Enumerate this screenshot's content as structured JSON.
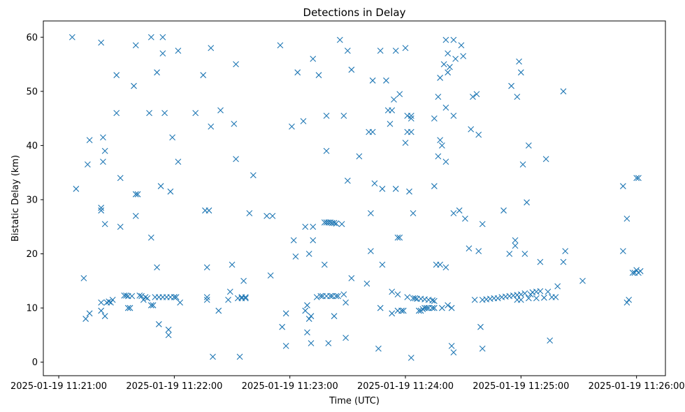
{
  "chart_data": {
    "type": "scatter",
    "title": "Detections in Delay",
    "xlabel": "Time (UTC)",
    "ylabel": "Bistatic Delay (km)",
    "marker": "x",
    "color": "#1f77b4",
    "grid": false,
    "xlim": [
      "2025-01-19 11:20:52",
      "2025-01-19 11:26:15"
    ],
    "ylim": [
      -2.5,
      63
    ],
    "xticks": [
      "2025-01-19 11:21:00",
      "2025-01-19 11:22:00",
      "2025-01-19 11:23:00",
      "2025-01-19 11:24:00",
      "2025-01-19 11:25:00",
      "2025-01-19 11:26:00"
    ],
    "yticks": [
      0,
      10,
      20,
      30,
      40,
      50,
      60
    ],
    "points": [
      [
        "11:21:07",
        60.0
      ],
      [
        "11:21:09",
        32.0
      ],
      [
        "11:21:13",
        15.5
      ],
      [
        "11:21:14",
        8.0
      ],
      [
        "11:21:15",
        36.5
      ],
      [
        "11:21:16",
        41.0
      ],
      [
        "11:21:16",
        9.0
      ],
      [
        "11:21:22",
        59.0
      ],
      [
        "11:21:22",
        28.5
      ],
      [
        "11:21:22",
        28.0
      ],
      [
        "11:21:22",
        11.0
      ],
      [
        "11:21:22",
        9.5
      ],
      [
        "11:21:23",
        41.5
      ],
      [
        "11:21:23",
        37.0
      ],
      [
        "11:21:24",
        25.5
      ],
      [
        "11:21:24",
        39.0
      ],
      [
        "11:21:24",
        8.5
      ],
      [
        "11:21:25",
        11.0
      ],
      [
        "11:21:27",
        11.0
      ],
      [
        "11:21:30",
        53.0
      ],
      [
        "11:21:30",
        46.0
      ],
      [
        "11:21:32",
        34.0
      ],
      [
        "11:21:32",
        25.0
      ],
      [
        "11:21:34",
        12.3
      ],
      [
        "11:21:35",
        12.3
      ],
      [
        "11:21:36",
        12.2
      ],
      [
        "11:21:36",
        10.0
      ],
      [
        "11:21:37",
        10.0
      ],
      [
        "11:21:38",
        12.2
      ],
      [
        "11:21:39",
        51.0
      ],
      [
        "11:21:40",
        58.5
      ],
      [
        "11:21:40",
        31.0
      ],
      [
        "11:21:40",
        27.0
      ],
      [
        "11:21:41",
        31.0
      ],
      [
        "11:21:42",
        12.3
      ],
      [
        "11:21:43",
        12.2
      ],
      [
        "11:21:44",
        11.5
      ],
      [
        "11:21:45",
        12.0
      ],
      [
        "11:21:47",
        46.0
      ],
      [
        "11:21:48",
        23.0
      ],
      [
        "11:21:48",
        10.5
      ],
      [
        "11:21:48",
        60.0
      ],
      [
        "11:21:49",
        10.5
      ],
      [
        "11:21:51",
        17.5
      ],
      [
        "11:21:51",
        53.5
      ],
      [
        "11:21:52",
        7.0
      ],
      [
        "11:21:53",
        32.5
      ],
      [
        "11:21:54",
        57.0
      ],
      [
        "11:21:54",
        60.0
      ],
      [
        "11:21:55",
        46.0
      ],
      [
        "11:21:56",
        12.0
      ],
      [
        "11:21:57",
        6.0
      ],
      [
        "11:21:57",
        5.0
      ],
      [
        "11:21:58",
        31.5
      ],
      [
        "11:21:59",
        41.5
      ],
      [
        "11:22:00",
        12.0
      ],
      [
        "11:22:02",
        57.5
      ],
      [
        "11:22:02",
        37.0
      ],
      [
        "11:22:03",
        11.0
      ],
      [
        "11:22:11",
        46.0
      ],
      [
        "11:22:15",
        53.0
      ],
      [
        "11:22:16",
        28.0
      ],
      [
        "11:22:17",
        17.5
      ],
      [
        "11:22:17",
        12.0
      ],
      [
        "11:22:17",
        11.5
      ],
      [
        "11:22:18",
        28.0
      ],
      [
        "11:22:19",
        58.0
      ],
      [
        "11:22:19",
        43.5
      ],
      [
        "11:22:20",
        1.0
      ],
      [
        "11:22:23",
        9.5
      ],
      [
        "11:22:24",
        46.5
      ],
      [
        "11:22:28",
        11.5
      ],
      [
        "11:22:29",
        13.0
      ],
      [
        "11:22:30",
        18.0
      ],
      [
        "11:22:31",
        44.0
      ],
      [
        "11:22:32",
        55.0
      ],
      [
        "11:22:32",
        37.5
      ],
      [
        "11:22:33",
        11.8
      ],
      [
        "11:22:34",
        1.0
      ],
      [
        "11:22:35",
        12.0
      ],
      [
        "11:22:36",
        15.0
      ],
      [
        "11:22:37",
        12.0
      ],
      [
        "11:22:39",
        27.5
      ],
      [
        "11:22:41",
        34.5
      ],
      [
        "11:22:48",
        27.0
      ],
      [
        "11:22:50",
        16.0
      ],
      [
        "11:22:51",
        27.0
      ],
      [
        "11:22:55",
        58.5
      ],
      [
        "11:22:56",
        6.5
      ],
      [
        "11:22:58",
        3.0
      ],
      [
        "11:22:58",
        9.0
      ],
      [
        "11:23:01",
        43.5
      ],
      [
        "11:23:02",
        22.5
      ],
      [
        "11:23:03",
        19.5
      ],
      [
        "11:23:04",
        53.5
      ],
      [
        "11:23:07",
        44.5
      ],
      [
        "11:23:08",
        25.0
      ],
      [
        "11:23:08",
        9.5
      ],
      [
        "11:23:09",
        5.5
      ],
      [
        "11:23:09",
        10.5
      ],
      [
        "11:23:10",
        20.0
      ],
      [
        "11:23:10",
        8.0
      ],
      [
        "11:23:11",
        3.5
      ],
      [
        "11:23:11",
        8.5
      ],
      [
        "11:23:12",
        56.0
      ],
      [
        "11:23:12",
        25.0
      ],
      [
        "11:23:12",
        22.5
      ],
      [
        "11:23:14",
        12.0
      ],
      [
        "11:23:15",
        53.0
      ],
      [
        "11:23:16",
        12.2
      ],
      [
        "11:23:18",
        18.0
      ],
      [
        "11:23:19",
        45.5
      ],
      [
        "11:23:19",
        39.0
      ],
      [
        "11:23:20",
        3.5
      ],
      [
        "11:23:23",
        8.5
      ],
      [
        "11:23:26",
        59.5
      ],
      [
        "11:23:27",
        25.5
      ],
      [
        "11:23:28",
        12.5
      ],
      [
        "11:23:28",
        45.5
      ],
      [
        "11:23:29",
        11.0
      ],
      [
        "11:23:29",
        4.5
      ],
      [
        "11:23:30",
        57.5
      ],
      [
        "11:23:30",
        33.5
      ],
      [
        "11:23:32",
        54.0
      ],
      [
        "11:23:32",
        15.5
      ],
      [
        "11:23:36",
        38.0
      ],
      [
        "11:23:40",
        14.5
      ],
      [
        "11:23:41",
        42.5
      ],
      [
        "11:23:42",
        20.5
      ],
      [
        "11:23:42",
        27.5
      ],
      [
        "11:23:43",
        52.0
      ],
      [
        "11:23:43",
        42.5
      ],
      [
        "11:23:44",
        33.0
      ],
      [
        "11:23:46",
        2.5
      ],
      [
        "11:23:47",
        57.5
      ],
      [
        "11:23:48",
        18.0
      ],
      [
        "11:23:48",
        32.0
      ],
      [
        "11:23:50",
        52.0
      ],
      [
        "11:23:51",
        46.5
      ],
      [
        "11:23:52",
        44.0
      ],
      [
        "11:23:53",
        13.0
      ],
      [
        "11:23:53",
        9.0
      ],
      [
        "11:23:53",
        46.5
      ],
      [
        "11:23:54",
        48.5
      ],
      [
        "11:23:55",
        57.5
      ],
      [
        "11:23:55",
        32.0
      ],
      [
        "11:23:56",
        23.0
      ],
      [
        "11:23:56",
        12.5
      ],
      [
        "11:23:56",
        9.5
      ],
      [
        "11:23:57",
        23.0
      ],
      [
        "11:23:57",
        49.5
      ],
      [
        "11:23:58",
        9.5
      ],
      [
        "11:23:59",
        9.5
      ],
      [
        "11:24:00",
        40.5
      ],
      [
        "11:24:00",
        58.0
      ],
      [
        "11:24:01",
        45.5
      ],
      [
        "11:24:01",
        42.5
      ],
      [
        "11:24:01",
        12.0
      ],
      [
        "11:24:02",
        31.5
      ],
      [
        "11:24:03",
        45.5
      ],
      [
        "11:24:03",
        42.5
      ],
      [
        "11:24:03",
        45.0
      ],
      [
        "11:24:03",
        0.8
      ],
      [
        "11:24:04",
        27.5
      ],
      [
        "11:24:04",
        11.8
      ],
      [
        "11:24:05",
        11.8
      ],
      [
        "11:24:07",
        9.5
      ],
      [
        "11:24:08",
        9.5
      ],
      [
        "11:24:09",
        9.8
      ],
      [
        "11:24:10",
        10.0
      ],
      [
        "11:24:11",
        10.0
      ],
      [
        "11:24:12",
        10.0
      ],
      [
        "11:24:14",
        10.0
      ],
      [
        "11:24:15",
        10.0
      ],
      [
        "11:24:15",
        45.0
      ],
      [
        "11:24:15",
        32.5
      ],
      [
        "11:24:16",
        18.0
      ],
      [
        "11:24:17",
        38.0
      ],
      [
        "11:24:17",
        49.0
      ],
      [
        "11:24:18",
        52.5
      ],
      [
        "11:24:18",
        41.0
      ],
      [
        "11:24:18",
        18.0
      ],
      [
        "11:24:19",
        40.0
      ],
      [
        "11:24:19",
        10.0
      ],
      [
        "11:24:20",
        55.0
      ],
      [
        "11:24:21",
        37.0
      ],
      [
        "11:24:21",
        17.5
      ],
      [
        "11:24:21",
        47.0
      ],
      [
        "11:24:21",
        59.5
      ],
      [
        "11:24:22",
        57.0
      ],
      [
        "11:24:22",
        53.5
      ],
      [
        "11:24:22",
        10.5
      ],
      [
        "11:24:23",
        54.5
      ],
      [
        "11:24:24",
        3.0
      ],
      [
        "11:24:24",
        10.0
      ],
      [
        "11:24:25",
        59.5
      ],
      [
        "11:24:25",
        45.5
      ],
      [
        "11:24:25",
        27.5
      ],
      [
        "11:24:25",
        1.8
      ],
      [
        "11:24:26",
        56.0
      ],
      [
        "11:24:28",
        28.0
      ],
      [
        "11:24:29",
        58.5
      ],
      [
        "11:24:30",
        56.5
      ],
      [
        "11:24:31",
        26.5
      ],
      [
        "11:24:33",
        21.0
      ],
      [
        "11:24:34",
        43.0
      ],
      [
        "11:24:35",
        49.0
      ],
      [
        "11:24:36",
        11.5
      ],
      [
        "11:24:37",
        49.5
      ],
      [
        "11:24:38",
        42.0
      ],
      [
        "11:24:38",
        20.5
      ],
      [
        "11:24:39",
        6.5
      ],
      [
        "11:24:40",
        25.5
      ],
      [
        "11:24:40",
        2.5
      ],
      [
        "11:24:40",
        11.5
      ],
      [
        "11:24:48",
        11.8
      ],
      [
        "11:24:51",
        28.0
      ],
      [
        "11:24:54",
        20.0
      ],
      [
        "11:24:55",
        51.0
      ],
      [
        "11:24:57",
        22.5
      ],
      [
        "11:24:57",
        21.5
      ],
      [
        "11:24:58",
        49.0
      ],
      [
        "11:24:59",
        55.5
      ],
      [
        "11:25:00",
        53.5
      ],
      [
        "11:25:01",
        36.5
      ],
      [
        "11:25:02",
        20.0
      ],
      [
        "11:25:03",
        29.5
      ],
      [
        "11:25:04",
        40.0
      ],
      [
        "11:25:05",
        12.5
      ],
      [
        "11:25:10",
        18.5
      ],
      [
        "11:25:13",
        37.5
      ],
      [
        "11:25:14",
        13.0
      ],
      [
        "11:25:15",
        4.0
      ],
      [
        "11:25:19",
        14.0
      ],
      [
        "11:25:22",
        50.0
      ],
      [
        "11:25:22",
        18.5
      ],
      [
        "11:25:23",
        20.5
      ],
      [
        "11:25:32",
        15.0
      ],
      [
        "11:25:53",
        32.5
      ],
      [
        "11:25:53",
        20.5
      ],
      [
        "11:25:55",
        11.0
      ],
      [
        "11:25:55",
        26.5
      ],
      [
        "11:25:56",
        11.5
      ],
      [
        "11:25:58",
        16.5
      ],
      [
        "11:25:59",
        16.5
      ],
      [
        "11:26:00",
        17.0
      ],
      [
        "11:26:00",
        34.0
      ],
      [
        "11:26:01",
        34.0
      ],
      [
        "11:26:01",
        16.5
      ],
      [
        "11:26:02",
        16.8
      ],
      [
        "11:23:47",
        10.0
      ],
      [
        "11:21:58",
        12.0
      ],
      [
        "11:22:00",
        12.0
      ],
      [
        "11:22:01",
        12.0
      ],
      [
        "11:22:35",
        11.8
      ],
      [
        "11:22:37",
        11.8
      ],
      [
        "11:23:17",
        12.2
      ],
      [
        "11:23:19",
        12.2
      ],
      [
        "11:23:21",
        12.2
      ],
      [
        "11:23:22",
        12.2
      ],
      [
        "11:23:24",
        12.2
      ],
      [
        "11:23:25",
        12.2
      ],
      [
        "11:23:18",
        25.8
      ],
      [
        "11:23:19",
        25.8
      ],
      [
        "11:23:20",
        25.8
      ],
      [
        "11:23:21",
        25.8
      ],
      [
        "11:23:22",
        25.7
      ],
      [
        "11:23:23",
        25.7
      ],
      [
        "11:23:24",
        25.6
      ],
      [
        "11:24:06",
        11.7
      ],
      [
        "11:24:08",
        11.7
      ],
      [
        "11:24:10",
        11.6
      ],
      [
        "11:24:12",
        11.5
      ],
      [
        "11:24:14",
        11.4
      ],
      [
        "11:24:15",
        11.3
      ],
      [
        "11:24:42",
        11.6
      ],
      [
        "11:24:44",
        11.7
      ],
      [
        "11:24:46",
        11.8
      ],
      [
        "11:24:50",
        12.0
      ],
      [
        "11:24:52",
        12.1
      ],
      [
        "11:24:54",
        12.2
      ],
      [
        "11:24:56",
        12.3
      ],
      [
        "11:24:58",
        12.4
      ],
      [
        "11:25:00",
        12.5
      ],
      [
        "11:25:02",
        12.7
      ],
      [
        "11:25:06",
        12.9
      ],
      [
        "11:25:08",
        13.0
      ],
      [
        "11:25:10",
        13.1
      ],
      [
        "11:24:58",
        11.5
      ],
      [
        "11:25:00",
        11.5
      ],
      [
        "11:25:04",
        11.8
      ],
      [
        "11:25:08",
        11.8
      ],
      [
        "11:25:12",
        11.9
      ],
      [
        "11:25:16",
        12.0
      ],
      [
        "11:25:18",
        12.0
      ],
      [
        "11:21:26",
        11.2
      ],
      [
        "11:21:28",
        11.5
      ],
      [
        "11:21:46",
        11.8
      ],
      [
        "11:21:50",
        12.0
      ],
      [
        "11:21:52",
        12.0
      ],
      [
        "11:21:54",
        12.0
      ]
    ]
  }
}
